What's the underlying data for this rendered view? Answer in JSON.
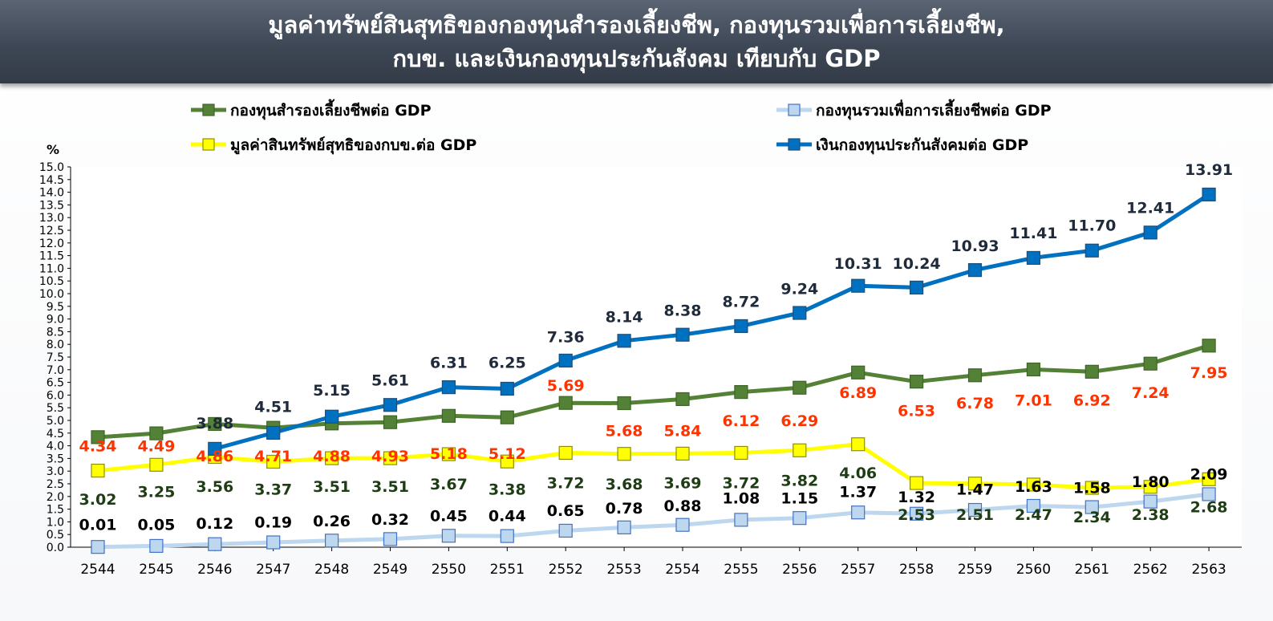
{
  "title_line1": "มูลค่าทรัพย์สินสุทธิของกองทุนสำรองเลี้ยงชีพ, กองทุนรวมเพื่อการเลี้ยงชีพ,",
  "title_line2": "กบข. และเงินกองทุนประกันสังคม  เทียบกับ GDP",
  "chart_data": {
    "type": "line",
    "ylabel": "%",
    "ylim": [
      0,
      15
    ],
    "ytick_step": 0.5,
    "grid": false,
    "legend_position": "top",
    "x": [
      "2544",
      "2545",
      "2546",
      "2547",
      "2548",
      "2549",
      "2550",
      "2551",
      "2552",
      "2553",
      "2554",
      "2555",
      "2556",
      "2557",
      "2558",
      "2559",
      "2560",
      "2561",
      "2562",
      "2563"
    ],
    "yticks": [
      "0.0",
      "0.5",
      "1.0",
      "1.5",
      "2.0",
      "2.5",
      "3.0",
      "3.5",
      "4.0",
      "4.5",
      "5.0",
      "5.5",
      "6.0",
      "6.5",
      "7.0",
      "7.5",
      "8.0",
      "8.5",
      "9.0",
      "9.5",
      "10.0",
      "10.5",
      "11.0",
      "11.5",
      "12.0",
      "12.5",
      "13.0",
      "13.5",
      "14.0",
      "14.5",
      "15.0"
    ],
    "series": [
      {
        "name": "กองทุนสำรองเลี้ยงชีพต่อ GDP",
        "color": "#538135",
        "marker_fill": "#538135",
        "marker_stroke": "#3e6428",
        "line_width": 5,
        "values": [
          4.34,
          4.49,
          4.86,
          4.71,
          4.88,
          4.93,
          5.18,
          5.12,
          5.69,
          5.68,
          5.84,
          6.12,
          6.29,
          6.89,
          6.53,
          6.78,
          7.01,
          6.92,
          7.24,
          7.95
        ],
        "labels": [
          "4.34",
          "4.49",
          "4.86",
          "4.71",
          "4.88",
          "4.93",
          "5.18",
          "5.12",
          "5.69",
          "5.68",
          "5.84",
          "6.12",
          "6.29",
          "6.89",
          "6.53",
          "6.78",
          "7.01",
          "6.92",
          "7.24",
          "7.95"
        ],
        "label_color": "#ff3300",
        "label_y": [
          4.0,
          4.0,
          3.6,
          3.6,
          3.6,
          3.6,
          3.7,
          3.7,
          6.4,
          4.6,
          4.6,
          5.0,
          5.0,
          6.1,
          5.4,
          5.7,
          5.8,
          5.8,
          6.1,
          6.9
        ]
      },
      {
        "name": "กองทุนรวมเพื่อการเลี้ยงชีพต่อ GDP",
        "color": "#bdd7ee",
        "marker_fill": "#bdd7ee",
        "marker_stroke": "#4472c4",
        "line_width": 5,
        "values": [
          0.01,
          0.05,
          0.12,
          0.19,
          0.26,
          0.32,
          0.45,
          0.44,
          0.65,
          0.78,
          0.88,
          1.08,
          1.15,
          1.37,
          1.32,
          1.47,
          1.63,
          1.58,
          1.8,
          2.09
        ],
        "labels": [
          "0.01",
          "0.05",
          "0.12",
          "0.19",
          "0.26",
          "0.32",
          "0.45",
          "0.44",
          "0.65",
          "0.78",
          "0.88",
          "1.08",
          "1.15",
          "1.37",
          "1.32",
          "1.47",
          "1.63",
          "1.58",
          "1.80",
          "2.09"
        ],
        "label_color": "#000000",
        "label_y": [
          0.9,
          0.9,
          0.95,
          1.0,
          1.05,
          1.1,
          1.25,
          1.25,
          1.45,
          1.55,
          1.65,
          1.95,
          1.95,
          2.2,
          2.0,
          2.3,
          2.4,
          2.35,
          2.6,
          2.9
        ]
      },
      {
        "name": "มูลค่าสินทรัพย์สุทธิของกบข.ต่อ GDP",
        "color": "#ffff00",
        "marker_fill": "#ffff00",
        "marker_stroke": "#8f8f00",
        "line_width": 5,
        "values": [
          3.02,
          3.25,
          3.56,
          3.37,
          3.51,
          3.51,
          3.67,
          3.38,
          3.72,
          3.68,
          3.69,
          3.72,
          3.82,
          4.06,
          2.53,
          2.51,
          2.47,
          2.34,
          2.38,
          2.68
        ],
        "labels": [
          "3.02",
          "3.25",
          "3.56",
          "3.37",
          "3.51",
          "3.51",
          "3.67",
          "3.38",
          "3.72",
          "3.68",
          "3.69",
          "3.72",
          "3.82",
          "4.06",
          "2.53",
          "2.51",
          "2.47",
          "2.34",
          "2.38",
          "2.68"
        ],
        "label_color": "#1e3d14",
        "label_y": [
          1.9,
          2.2,
          2.4,
          2.3,
          2.4,
          2.4,
          2.5,
          2.3,
          2.55,
          2.5,
          2.55,
          2.55,
          2.65,
          2.95,
          1.3,
          1.3,
          1.3,
          1.2,
          1.3,
          1.6
        ]
      },
      {
        "name": "เงินกองทุนประกันสังคมต่อ GDP",
        "color": "#0070c0",
        "marker_fill": "#0070c0",
        "marker_stroke": "#1f4e79",
        "line_width": 5,
        "values": [
          null,
          null,
          3.88,
          4.51,
          5.15,
          5.61,
          6.31,
          6.25,
          7.36,
          8.14,
          8.38,
          8.72,
          9.24,
          10.31,
          10.24,
          10.93,
          11.41,
          11.7,
          12.41,
          13.91
        ],
        "labels": [
          "",
          "",
          "3.88",
          "4.51",
          "5.15",
          "5.61",
          "6.31",
          "6.25",
          "7.36",
          "8.14",
          "8.38",
          "8.72",
          "9.24",
          "10.31",
          "10.24",
          "10.93",
          "11.41",
          "11.70",
          "12.41",
          "13.91"
        ],
        "label_color": "#1f2a3a",
        "label_y": [
          0,
          0,
          4.9,
          5.55,
          6.2,
          6.6,
          7.3,
          7.3,
          8.3,
          9.1,
          9.35,
          9.7,
          10.2,
          11.2,
          11.2,
          11.9,
          12.4,
          12.7,
          13.4,
          14.9
        ]
      }
    ]
  }
}
